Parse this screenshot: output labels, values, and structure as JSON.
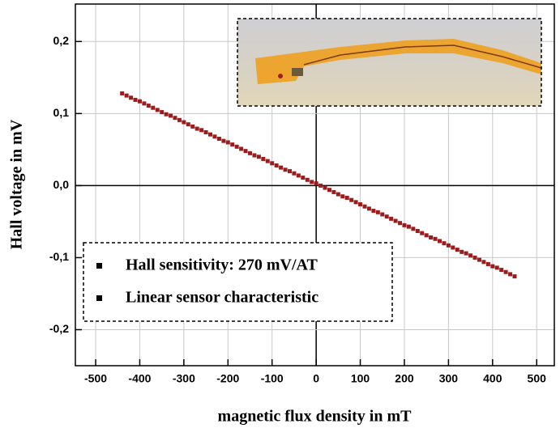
{
  "chart_data": {
    "type": "scatter",
    "x_label": "magnetic flux density in mT",
    "y_label": "Hall voltage in mV",
    "annotations": [
      "Hall sensitivity: 270 mV/AT",
      "Linear sensor characteristic"
    ],
    "xlim": [
      -546,
      540
    ],
    "ylim": [
      -0.25,
      0.252
    ],
    "xticks": [
      -500,
      -400,
      -300,
      -200,
      -100,
      0,
      100,
      200,
      300,
      400,
      500
    ],
    "yticks": [
      {
        "value": -0.2,
        "label": "-0,2"
      },
      {
        "value": -0.1,
        "label": "-0,1"
      },
      {
        "value": 0,
        "label": "0,0"
      },
      {
        "value": 0.1,
        "label": "0,1"
      },
      {
        "value": 0.2,
        "label": "0,2"
      }
    ],
    "grid": true,
    "series": [
      {
        "color": "#9b1c1c",
        "x": [
          -440,
          -430,
          -420,
          -410,
          -400,
          -390,
          -380,
          -370,
          -360,
          -350,
          -340,
          -330,
          -320,
          -310,
          -300,
          -290,
          -280,
          -270,
          -260,
          -250,
          -240,
          -230,
          -220,
          -210,
          -200,
          -190,
          -180,
          -170,
          -160,
          -150,
          -140,
          -130,
          -120,
          -110,
          -100,
          -90,
          -80,
          -70,
          -60,
          -50,
          -40,
          -30,
          -20,
          -10,
          0,
          10,
          20,
          30,
          40,
          50,
          60,
          70,
          80,
          90,
          100,
          110,
          120,
          130,
          140,
          150,
          160,
          170,
          180,
          190,
          200,
          210,
          220,
          230,
          240,
          250,
          260,
          270,
          280,
          290,
          300,
          310,
          320,
          330,
          340,
          350,
          360,
          370,
          380,
          390,
          400,
          410,
          420,
          430,
          440,
          450
        ],
        "values": [
          0.128,
          0.125,
          0.122,
          0.119,
          0.117,
          0.114,
          0.111,
          0.108,
          0.105,
          0.102,
          0.099,
          0.097,
          0.094,
          0.091,
          0.088,
          0.085,
          0.082,
          0.079,
          0.077,
          0.074,
          0.071,
          0.068,
          0.065,
          0.062,
          0.06,
          0.057,
          0.054,
          0.051,
          0.048,
          0.045,
          0.042,
          0.04,
          0.037,
          0.034,
          0.031,
          0.028,
          0.025,
          0.022,
          0.02,
          0.017,
          0.014,
          0.011,
          0.008,
          0.005,
          0.003,
          0,
          -0.003,
          -0.006,
          -0.009,
          -0.012,
          -0.015,
          -0.017,
          -0.02,
          -0.023,
          -0.026,
          -0.029,
          -0.032,
          -0.035,
          -0.037,
          -0.04,
          -0.043,
          -0.046,
          -0.049,
          -0.052,
          -0.055,
          -0.057,
          -0.06,
          -0.063,
          -0.066,
          -0.069,
          -0.072,
          -0.074,
          -0.077,
          -0.08,
          -0.083,
          -0.086,
          -0.089,
          -0.092,
          -0.094,
          -0.097,
          -0.1,
          -0.103,
          -0.106,
          -0.109,
          -0.112,
          -0.114,
          -0.117,
          -0.12,
          -0.123,
          -0.126
        ]
      }
    ]
  }
}
